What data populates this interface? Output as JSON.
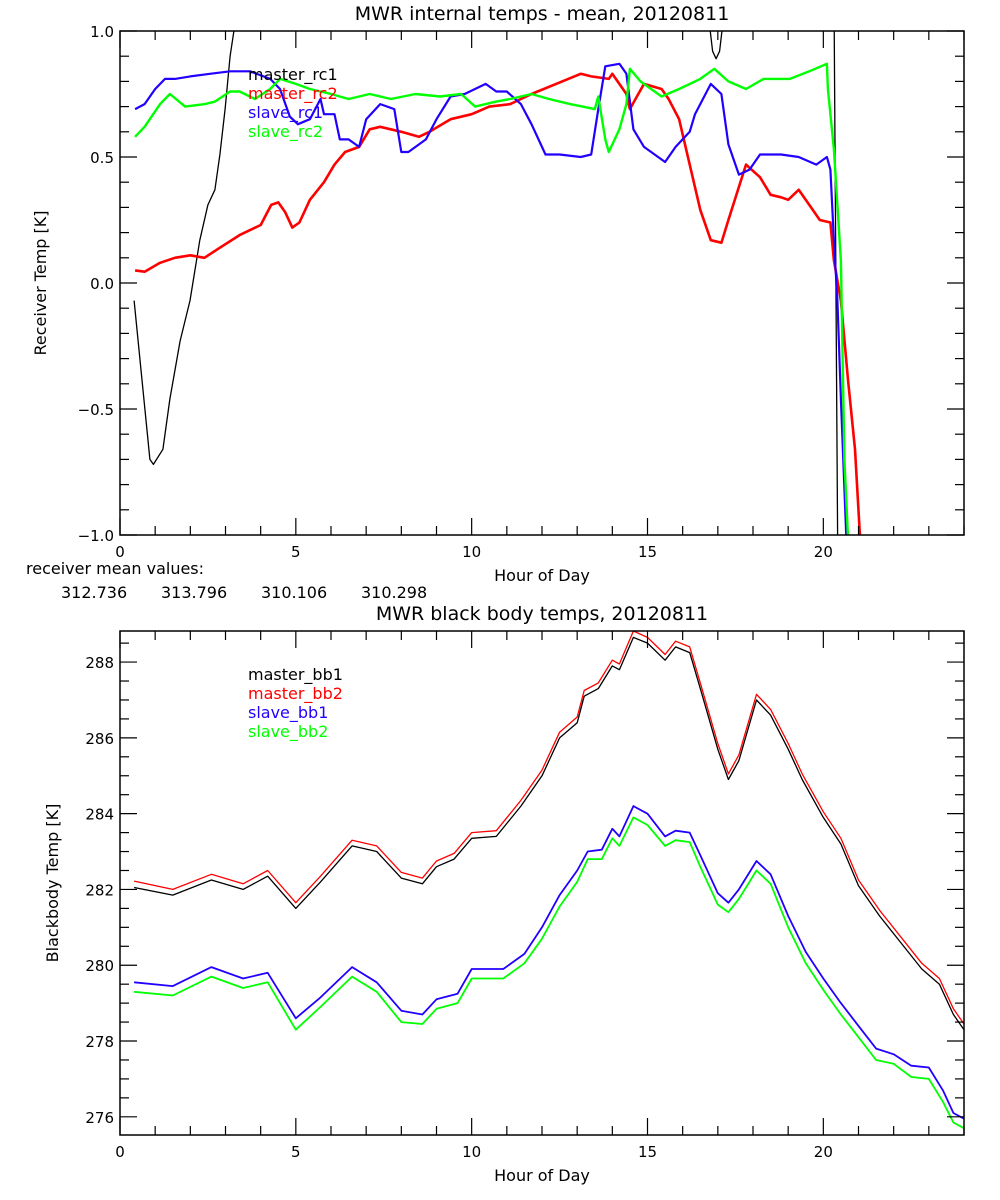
{
  "chart_data": [
    {
      "type": "line",
      "title": "MWR internal temps - mean, 20120811",
      "xlabel": "Hour of Day",
      "ylabel": "Receiver Temp [K]",
      "xlim": [
        0,
        24
      ],
      "ylim": [
        -1.0,
        1.0
      ],
      "xticks": [
        0,
        5,
        10,
        15,
        20
      ],
      "xtick_labels": [
        "0",
        "5",
        "10",
        "15",
        "20"
      ],
      "yticks": [
        -1.0,
        -0.5,
        0.0,
        0.5,
        1.0
      ],
      "ytick_labels": [
        "-1.0",
        "-0.5",
        "0.0",
        "0.5",
        "1.0"
      ],
      "x_minor_step": 1,
      "y_minor_step": 0.1,
      "grid": false,
      "legend_position": "top-left",
      "series": [
        {
          "name": "master_rc1",
          "color": "#000000",
          "x": [
            0.4,
            0.85,
            0.95,
            1.22,
            1.42,
            1.71,
            1.99,
            2.27,
            2.5,
            2.7,
            2.84,
            2.99,
            3.13,
            3.24,
            3.4,
            16.7,
            16.85,
            16.95,
            17.05,
            17.2,
            20.3,
            20.42
          ],
          "y": [
            -0.07,
            -0.7,
            -0.72,
            -0.66,
            -0.46,
            -0.23,
            -0.07,
            0.17,
            0.31,
            0.37,
            0.51,
            0.69,
            0.9,
            1.0,
            1.3,
            1.1,
            0.92,
            0.89,
            0.92,
            1.1,
            1.2,
            -1.3
          ]
        },
        {
          "name": "master_rc2",
          "color": "#ff0000",
          "x": [
            0.43,
            0.7,
            1.14,
            1.56,
            2.0,
            2.4,
            2.84,
            3.4,
            4.0,
            4.3,
            4.5,
            4.7,
            4.9,
            5.1,
            5.4,
            5.8,
            6.1,
            6.4,
            6.8,
            7.1,
            7.4,
            8.0,
            8.5,
            8.8,
            9.4,
            10.0,
            10.5,
            11.1,
            11.7,
            12.4,
            13.1,
            13.4,
            13.9,
            14.0,
            14.4,
            14.5,
            14.7,
            14.9,
            15.4,
            15.6,
            15.9,
            16.2,
            16.5,
            16.8,
            17.1,
            17.3,
            17.8,
            18.2,
            18.5,
            18.8,
            19.0,
            19.3,
            19.6,
            19.9,
            20.2,
            20.3,
            20.5,
            20.7,
            20.9,
            21.04
          ],
          "y": [
            0.05,
            0.045,
            0.08,
            0.1,
            0.11,
            0.1,
            0.14,
            0.19,
            0.23,
            0.31,
            0.32,
            0.28,
            0.22,
            0.24,
            0.33,
            0.4,
            0.47,
            0.52,
            0.54,
            0.61,
            0.62,
            0.6,
            0.58,
            0.6,
            0.65,
            0.67,
            0.7,
            0.71,
            0.75,
            0.79,
            0.83,
            0.82,
            0.81,
            0.83,
            0.75,
            0.69,
            0.74,
            0.79,
            0.77,
            0.73,
            0.65,
            0.47,
            0.29,
            0.17,
            0.16,
            0.25,
            0.47,
            0.42,
            0.35,
            0.34,
            0.33,
            0.37,
            0.31,
            0.25,
            0.24,
            0.09,
            -0.07,
            -0.38,
            -0.66,
            -1.0
          ]
        },
        {
          "name": "slave_rc1",
          "color": "#2200ff",
          "x": [
            0.43,
            0.7,
            1.0,
            1.28,
            1.56,
            2.0,
            2.56,
            3.13,
            3.7,
            4.27,
            4.55,
            4.83,
            5.06,
            5.4,
            5.7,
            5.8,
            6.1,
            6.25,
            6.5,
            6.8,
            7.0,
            7.4,
            7.8,
            8.0,
            8.2,
            8.7,
            9.0,
            9.4,
            9.8,
            10.4,
            10.7,
            11.0,
            11.4,
            11.7,
            12.1,
            12.5,
            13.1,
            13.4,
            13.6,
            13.8,
            14.2,
            14.4,
            14.6,
            14.9,
            15.4,
            15.5,
            15.8,
            16.2,
            16.35,
            16.8,
            17.1,
            17.3,
            17.6,
            17.9,
            18.2,
            18.8,
            19.3,
            19.8,
            20.1,
            20.2,
            20.3,
            20.4,
            20.5,
            20.65
          ],
          "y": [
            0.69,
            0.71,
            0.77,
            0.81,
            0.81,
            0.82,
            0.83,
            0.84,
            0.84,
            0.81,
            0.77,
            0.66,
            0.63,
            0.65,
            0.73,
            0.67,
            0.67,
            0.57,
            0.57,
            0.54,
            0.65,
            0.71,
            0.69,
            0.52,
            0.52,
            0.57,
            0.65,
            0.74,
            0.75,
            0.79,
            0.76,
            0.76,
            0.71,
            0.63,
            0.51,
            0.51,
            0.5,
            0.51,
            0.69,
            0.86,
            0.87,
            0.83,
            0.61,
            0.54,
            0.49,
            0.48,
            0.54,
            0.6,
            0.67,
            0.79,
            0.75,
            0.55,
            0.43,
            0.45,
            0.51,
            0.51,
            0.5,
            0.47,
            0.5,
            0.45,
            0.17,
            -0.07,
            -0.46,
            -1.0
          ]
        },
        {
          "name": "slave_rc2",
          "color": "#00ff00",
          "x": [
            0.43,
            0.7,
            1.14,
            1.42,
            1.85,
            2.42,
            2.7,
            3.13,
            3.4,
            3.84,
            4.27,
            4.55,
            5.0,
            5.4,
            6.0,
            6.5,
            7.1,
            7.7,
            8.4,
            9.1,
            9.7,
            10.1,
            10.7,
            11.1,
            11.7,
            12.2,
            12.8,
            13.5,
            13.6,
            13.8,
            13.9,
            14.2,
            14.4,
            14.5,
            14.8,
            15.4,
            15.9,
            16.5,
            16.9,
            17.3,
            17.8,
            18.3,
            19.05,
            19.6,
            20.1,
            20.13,
            20.3,
            20.5,
            20.6,
            20.7
          ],
          "y": [
            0.58,
            0.62,
            0.71,
            0.75,
            0.7,
            0.71,
            0.72,
            0.76,
            0.76,
            0.73,
            0.77,
            0.81,
            0.79,
            0.77,
            0.75,
            0.73,
            0.75,
            0.73,
            0.75,
            0.74,
            0.75,
            0.7,
            0.72,
            0.73,
            0.75,
            0.73,
            0.71,
            0.69,
            0.74,
            0.57,
            0.52,
            0.61,
            0.71,
            0.85,
            0.8,
            0.74,
            0.77,
            0.81,
            0.85,
            0.8,
            0.77,
            0.81,
            0.81,
            0.84,
            0.87,
            0.77,
            0.53,
            0.09,
            -0.7,
            -1.0
          ]
        }
      ],
      "annotation": {
        "label": "receiver mean values:",
        "values": [
          {
            "text": "312.736",
            "color": "#000000"
          },
          {
            "text": "313.796",
            "color": "#ff0000"
          },
          {
            "text": "310.106",
            "color": "#2200ff"
          },
          {
            "text": "310.298",
            "color": "#00ff00"
          }
        ]
      }
    },
    {
      "type": "line",
      "title": "MWR black body temps, 20120811",
      "xlabel": "Hour of Day",
      "ylabel": "Blackbody Temp [K]",
      "xlim": [
        0,
        24
      ],
      "ylim": [
        275.52,
        288.82
      ],
      "xticks": [
        0,
        5,
        10,
        15,
        20
      ],
      "xtick_labels": [
        "0",
        "5",
        "10",
        "15",
        "20"
      ],
      "yticks": [
        276,
        278,
        280,
        282,
        284,
        286,
        288
      ],
      "ytick_labels": [
        "276",
        "278",
        "280",
        "282",
        "284",
        "286",
        "288"
      ],
      "x_minor_step": 1,
      "y_minor_step": 0.5,
      "grid": false,
      "legend_position": "top-left",
      "series": [
        {
          "name": "master_bb1",
          "color": "#000000",
          "x": [
            0.4,
            1.5,
            2.6,
            3.5,
            4.2,
            5.0,
            5.7,
            6.6,
            7.3,
            8.0,
            8.6,
            9.0,
            9.5,
            10.0,
            10.7,
            11.4,
            12.0,
            12.5,
            13.0,
            13.2,
            13.6,
            14.0,
            14.2,
            14.6,
            15.0,
            15.5,
            15.8,
            16.2,
            16.5,
            17.0,
            17.3,
            17.6,
            18.1,
            18.5,
            19.0,
            19.4,
            20.0,
            20.5,
            21.0,
            21.6,
            22.2,
            22.8,
            23.3,
            23.7,
            24.0
          ],
          "y": [
            282.05,
            281.85,
            282.25,
            282.0,
            282.35,
            281.5,
            282.2,
            283.15,
            283.0,
            282.3,
            282.15,
            282.6,
            282.8,
            283.35,
            283.4,
            284.2,
            285.0,
            286.0,
            286.4,
            287.1,
            287.3,
            287.9,
            287.8,
            288.65,
            288.5,
            288.05,
            288.4,
            288.25,
            287.3,
            285.7,
            284.9,
            285.4,
            287.0,
            286.6,
            285.7,
            284.9,
            283.9,
            283.2,
            282.1,
            281.3,
            280.6,
            279.9,
            279.5,
            278.7,
            278.3
          ]
        },
        {
          "name": "master_bb2",
          "color": "#ff0000",
          "x": [
            0.4,
            1.5,
            2.6,
            3.5,
            4.2,
            5.0,
            5.7,
            6.6,
            7.3,
            8.0,
            8.6,
            9.0,
            9.5,
            10.0,
            10.7,
            11.4,
            12.0,
            12.5,
            13.0,
            13.2,
            13.6,
            14.0,
            14.2,
            14.6,
            15.0,
            15.5,
            15.8,
            16.2,
            16.5,
            17.0,
            17.3,
            17.6,
            18.1,
            18.5,
            19.0,
            19.4,
            20.0,
            20.5,
            21.0,
            21.6,
            22.2,
            22.8,
            23.3,
            23.7,
            24.0
          ],
          "y": [
            282.22,
            282.0,
            282.4,
            282.15,
            282.5,
            281.65,
            282.35,
            283.3,
            283.15,
            282.45,
            282.3,
            282.75,
            282.95,
            283.5,
            283.55,
            284.35,
            285.15,
            286.15,
            286.55,
            287.25,
            287.45,
            288.05,
            287.95,
            288.82,
            288.65,
            288.2,
            288.55,
            288.4,
            287.45,
            285.85,
            285.05,
            285.55,
            287.15,
            286.75,
            285.85,
            285.05,
            284.05,
            283.35,
            282.25,
            281.45,
            280.75,
            280.05,
            279.65,
            278.85,
            278.45
          ]
        },
        {
          "name": "slave_bb1",
          "color": "#2200ff",
          "x": [
            0.4,
            1.5,
            2.6,
            3.5,
            4.2,
            5.0,
            5.7,
            6.6,
            7.3,
            8.0,
            8.6,
            9.0,
            9.6,
            10.0,
            10.9,
            11.5,
            12.0,
            12.5,
            13.0,
            13.3,
            13.7,
            14.0,
            14.2,
            14.6,
            15.0,
            15.5,
            15.8,
            16.2,
            16.5,
            17.0,
            17.3,
            17.6,
            18.1,
            18.5,
            19.0,
            19.5,
            20.0,
            20.5,
            21.0,
            21.5,
            22.0,
            22.5,
            23.0,
            23.4,
            23.7,
            24.0
          ],
          "y": [
            279.55,
            279.45,
            279.95,
            279.65,
            279.8,
            278.6,
            279.15,
            279.95,
            279.55,
            278.8,
            278.7,
            279.1,
            279.25,
            279.9,
            279.9,
            280.3,
            281.0,
            281.85,
            282.5,
            283.0,
            283.05,
            283.6,
            283.4,
            284.2,
            284.0,
            283.4,
            283.55,
            283.5,
            282.9,
            281.9,
            281.65,
            282.0,
            282.75,
            282.4,
            281.3,
            280.35,
            279.65,
            279.0,
            278.4,
            277.8,
            277.65,
            277.35,
            277.3,
            276.7,
            276.1,
            275.95
          ]
        },
        {
          "name": "slave_bb2",
          "color": "#00ff00",
          "x": [
            0.4,
            1.5,
            2.6,
            3.5,
            4.2,
            5.0,
            5.7,
            6.6,
            7.3,
            8.0,
            8.6,
            9.0,
            9.6,
            10.0,
            10.9,
            11.5,
            12.0,
            12.5,
            13.0,
            13.3,
            13.7,
            14.0,
            14.2,
            14.6,
            15.0,
            15.5,
            15.8,
            16.2,
            16.5,
            17.0,
            17.3,
            17.6,
            18.1,
            18.5,
            19.0,
            19.5,
            20.0,
            20.5,
            21.0,
            21.5,
            22.0,
            22.5,
            23.0,
            23.4,
            23.7,
            24.0
          ],
          "y": [
            279.3,
            279.2,
            279.7,
            279.4,
            279.55,
            278.3,
            278.9,
            279.7,
            279.3,
            278.5,
            278.45,
            278.85,
            279.0,
            279.65,
            279.65,
            280.05,
            280.7,
            281.55,
            282.2,
            282.8,
            282.8,
            283.35,
            283.15,
            283.9,
            283.7,
            283.15,
            283.3,
            283.25,
            282.6,
            281.6,
            281.4,
            281.75,
            282.5,
            282.15,
            281.0,
            280.05,
            279.35,
            278.7,
            278.1,
            277.5,
            277.4,
            277.05,
            277.0,
            276.4,
            275.85,
            275.7
          ]
        }
      ]
    }
  ]
}
